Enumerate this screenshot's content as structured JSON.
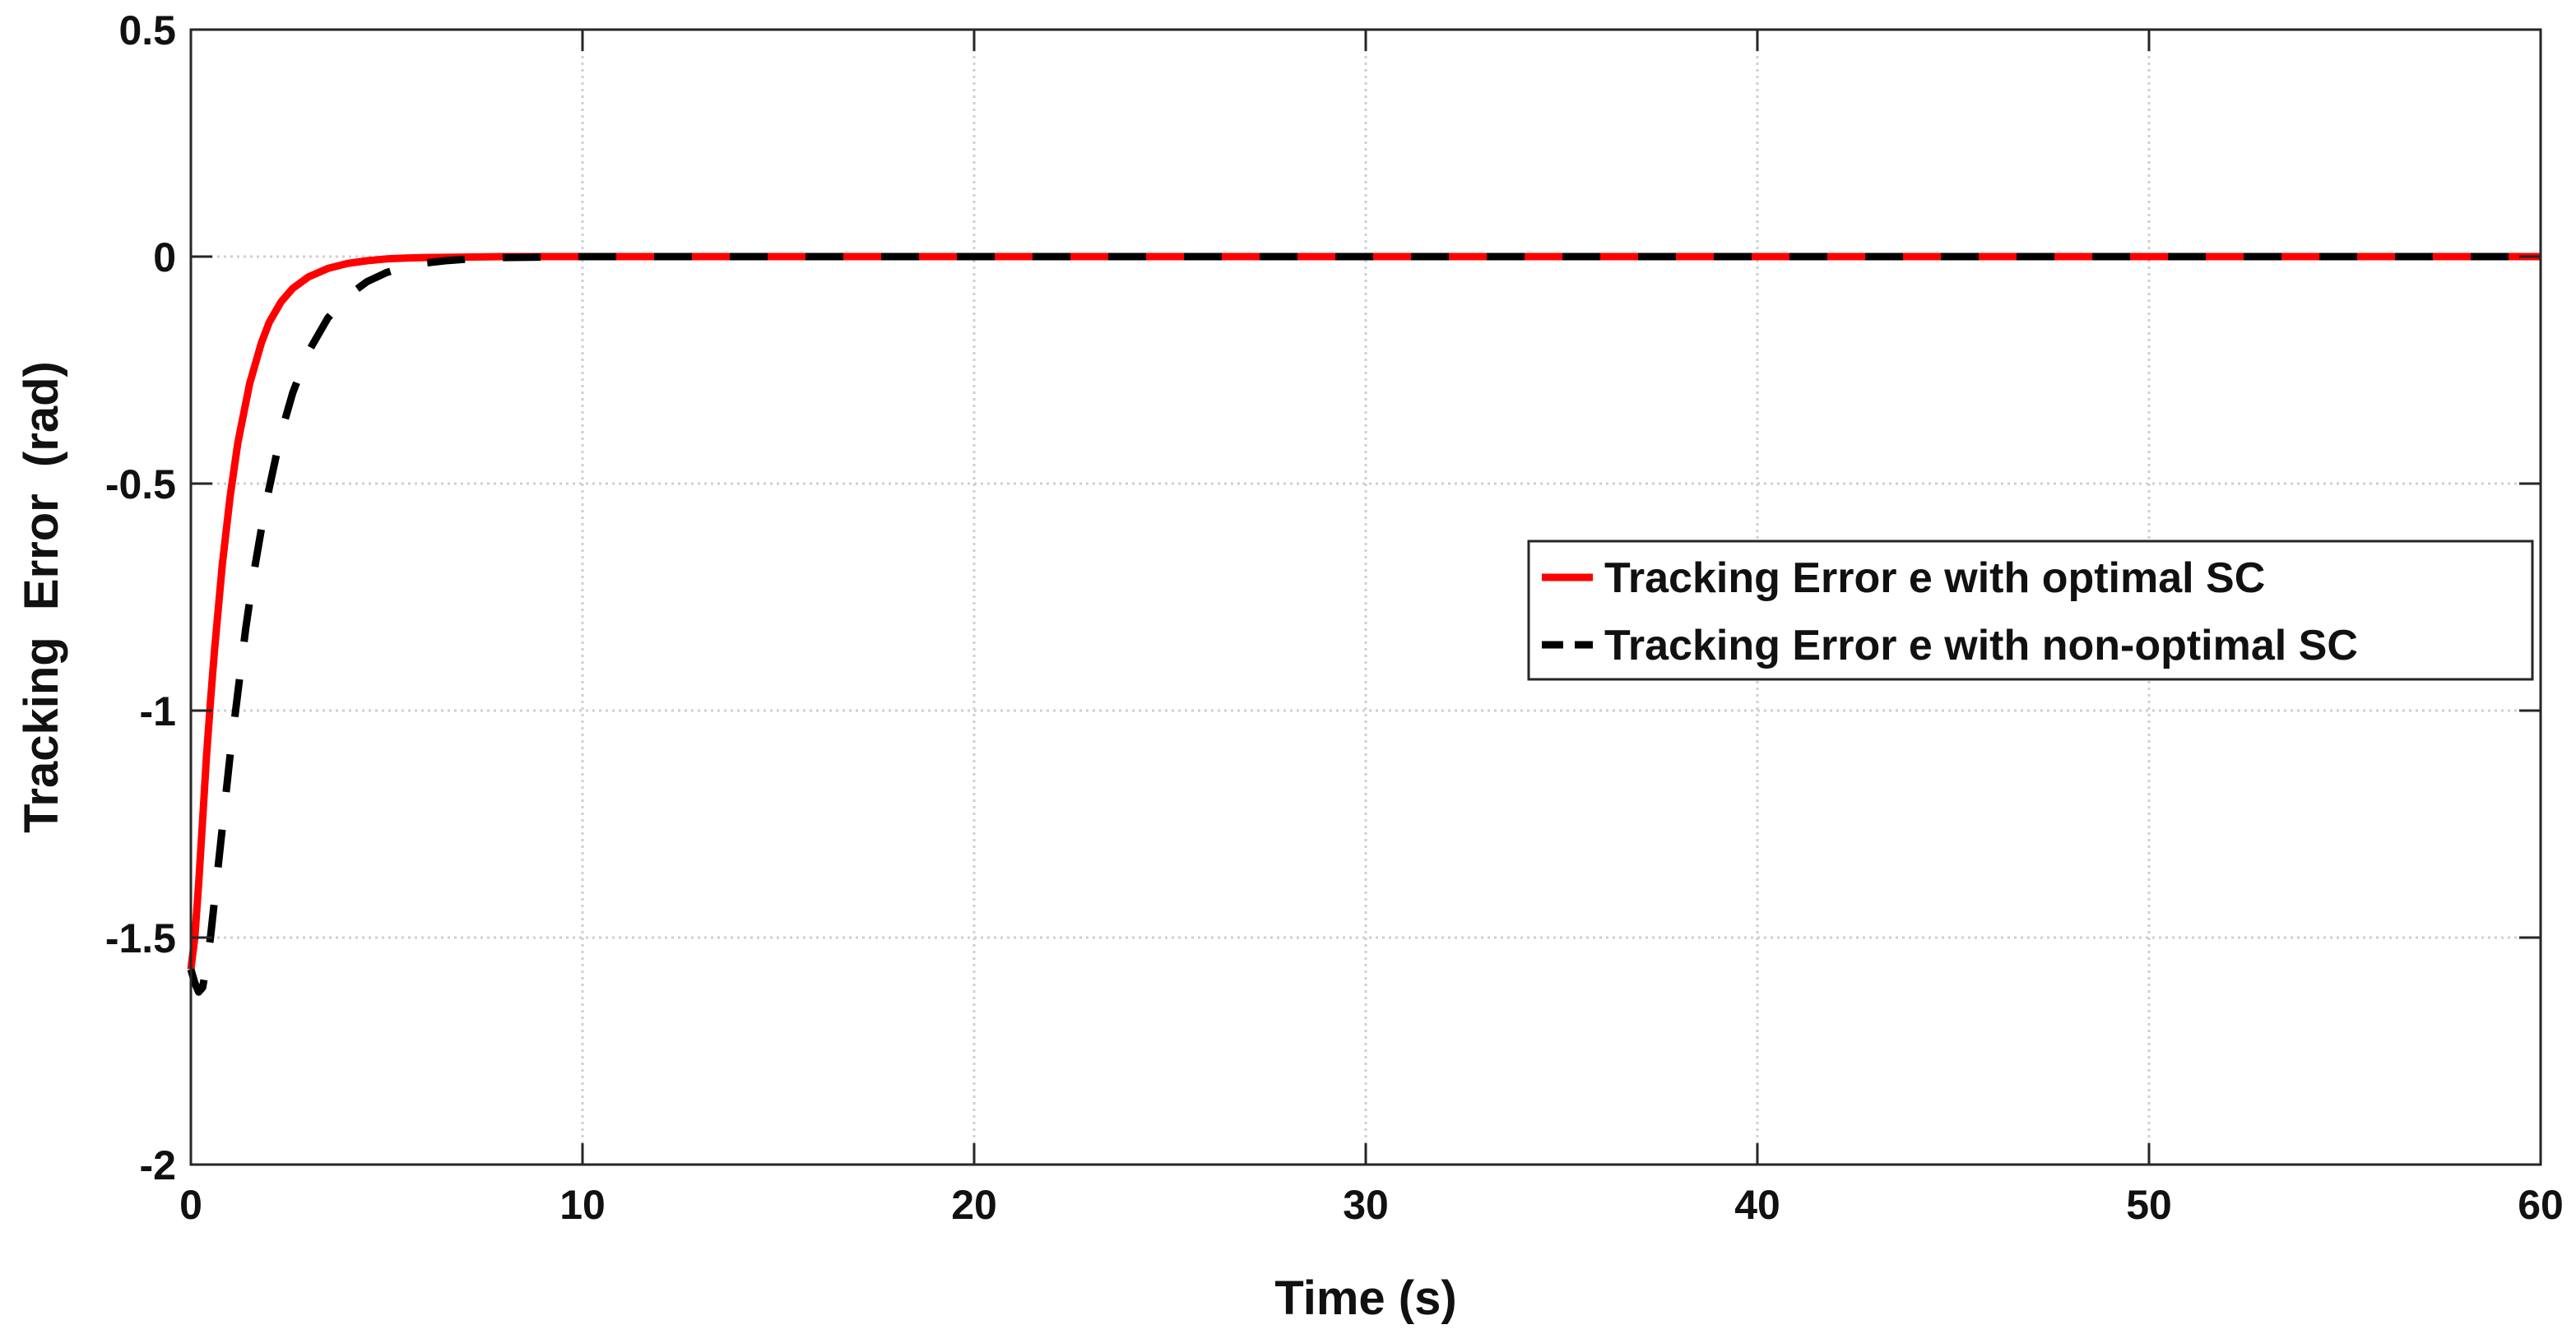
{
  "chart_data": {
    "type": "line",
    "title": "",
    "xlabel": "Time (s)",
    "ylabel": "Tracking  Error  (rad)",
    "xlim": [
      0,
      60
    ],
    "ylim": [
      -2,
      0.5
    ],
    "xticks": [
      0,
      10,
      20,
      30,
      40,
      50,
      60
    ],
    "yticks": [
      0.5,
      0,
      -0.5,
      -1,
      -1.5,
      -2
    ],
    "xtick_labels": [
      "0",
      "10",
      "20",
      "30",
      "40",
      "50",
      "60"
    ],
    "ytick_labels": [
      "0.5",
      "0",
      "-0.5",
      "-1",
      "-1.5",
      "-2"
    ],
    "grid": true,
    "legend_placement": "right",
    "series": [
      {
        "name": "Tracking Error e with optimal SC",
        "color": "#ff0000",
        "style": "solid",
        "x": [
          0,
          0.1,
          0.2,
          0.3,
          0.4,
          0.5,
          0.6,
          0.8,
          1.0,
          1.2,
          1.5,
          1.8,
          2.0,
          2.3,
          2.6,
          3.0,
          3.5,
          4.0,
          4.5,
          5.0,
          5.5,
          6.0,
          7.0,
          8.0,
          9.0,
          10,
          20,
          30,
          40,
          50,
          60
        ],
        "y": [
          -1.57,
          -1.5,
          -1.38,
          -1.24,
          -1.1,
          -0.98,
          -0.87,
          -0.68,
          -0.53,
          -0.41,
          -0.28,
          -0.19,
          -0.145,
          -0.1,
          -0.07,
          -0.045,
          -0.026,
          -0.015,
          -0.009,
          -0.005,
          -0.003,
          -0.002,
          -0.001,
          0,
          0,
          0,
          0,
          0,
          0,
          0,
          0
        ]
      },
      {
        "name": "Tracking Error e with non-optimal SC",
        "color": "#000000",
        "style": "dashed",
        "x": [
          0,
          0.1,
          0.2,
          0.3,
          0.4,
          0.5,
          0.6,
          0.8,
          1.0,
          1.2,
          1.4,
          1.6,
          1.8,
          2.0,
          2.3,
          2.6,
          3.0,
          3.5,
          4.0,
          4.5,
          5.0,
          5.5,
          6.0,
          6.5,
          7.0,
          8.0,
          9.0,
          10,
          20,
          30,
          40,
          50,
          60
        ],
        "y": [
          -1.57,
          -1.6,
          -1.62,
          -1.61,
          -1.56,
          -1.5,
          -1.42,
          -1.26,
          -1.1,
          -0.96,
          -0.82,
          -0.7,
          -0.6,
          -0.51,
          -0.39,
          -0.3,
          -0.21,
          -0.135,
          -0.087,
          -0.055,
          -0.035,
          -0.022,
          -0.014,
          -0.009,
          -0.006,
          -0.002,
          -0.001,
          0,
          0,
          0,
          0,
          0,
          0
        ]
      }
    ]
  }
}
